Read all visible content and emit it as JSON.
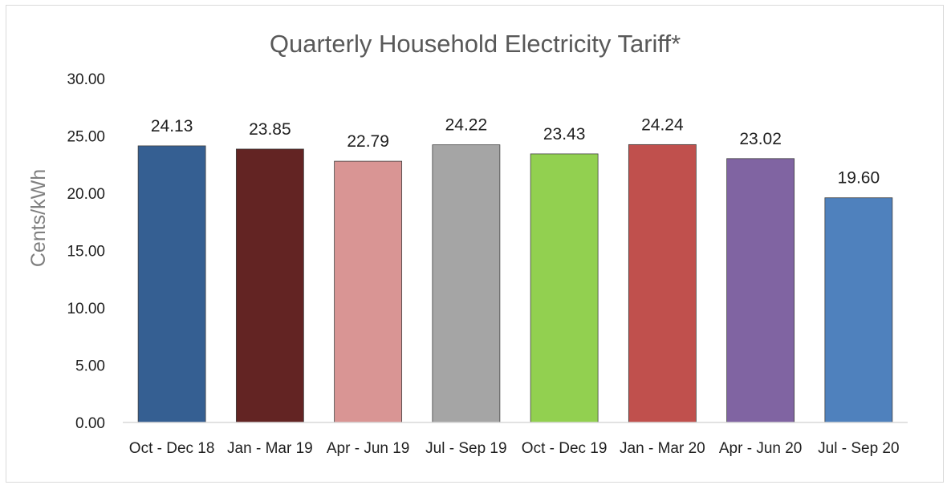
{
  "chart_data": {
    "type": "bar",
    "title": "Quarterly Household Electricity Tariff*",
    "ylabel": "Cents/kWh",
    "xlabel": "",
    "ylim": [
      0,
      30
    ],
    "yticks": [
      "0.00",
      "5.00",
      "10.00",
      "15.00",
      "20.00",
      "25.00",
      "30.00"
    ],
    "grid": false,
    "categories": [
      "Oct - Dec 18",
      "Jan - Mar 19",
      "Apr - Jun 19",
      "Jul - Sep 19",
      "Oct - Dec 19",
      "Jan - Mar 20",
      "Apr - Jun 20",
      "Jul - Sep 20"
    ],
    "values": [
      24.13,
      23.85,
      22.79,
      24.22,
      23.43,
      24.24,
      23.02,
      19.6
    ],
    "value_labels": [
      "24.13",
      "23.85",
      "22.79",
      "24.22",
      "23.43",
      "24.24",
      "23.02",
      "19.60"
    ],
    "colors": [
      "#355f92",
      "#632423",
      "#d99594",
      "#a5a5a5",
      "#92d050",
      "#c0504d",
      "#8064a2",
      "#4f81bd"
    ]
  }
}
